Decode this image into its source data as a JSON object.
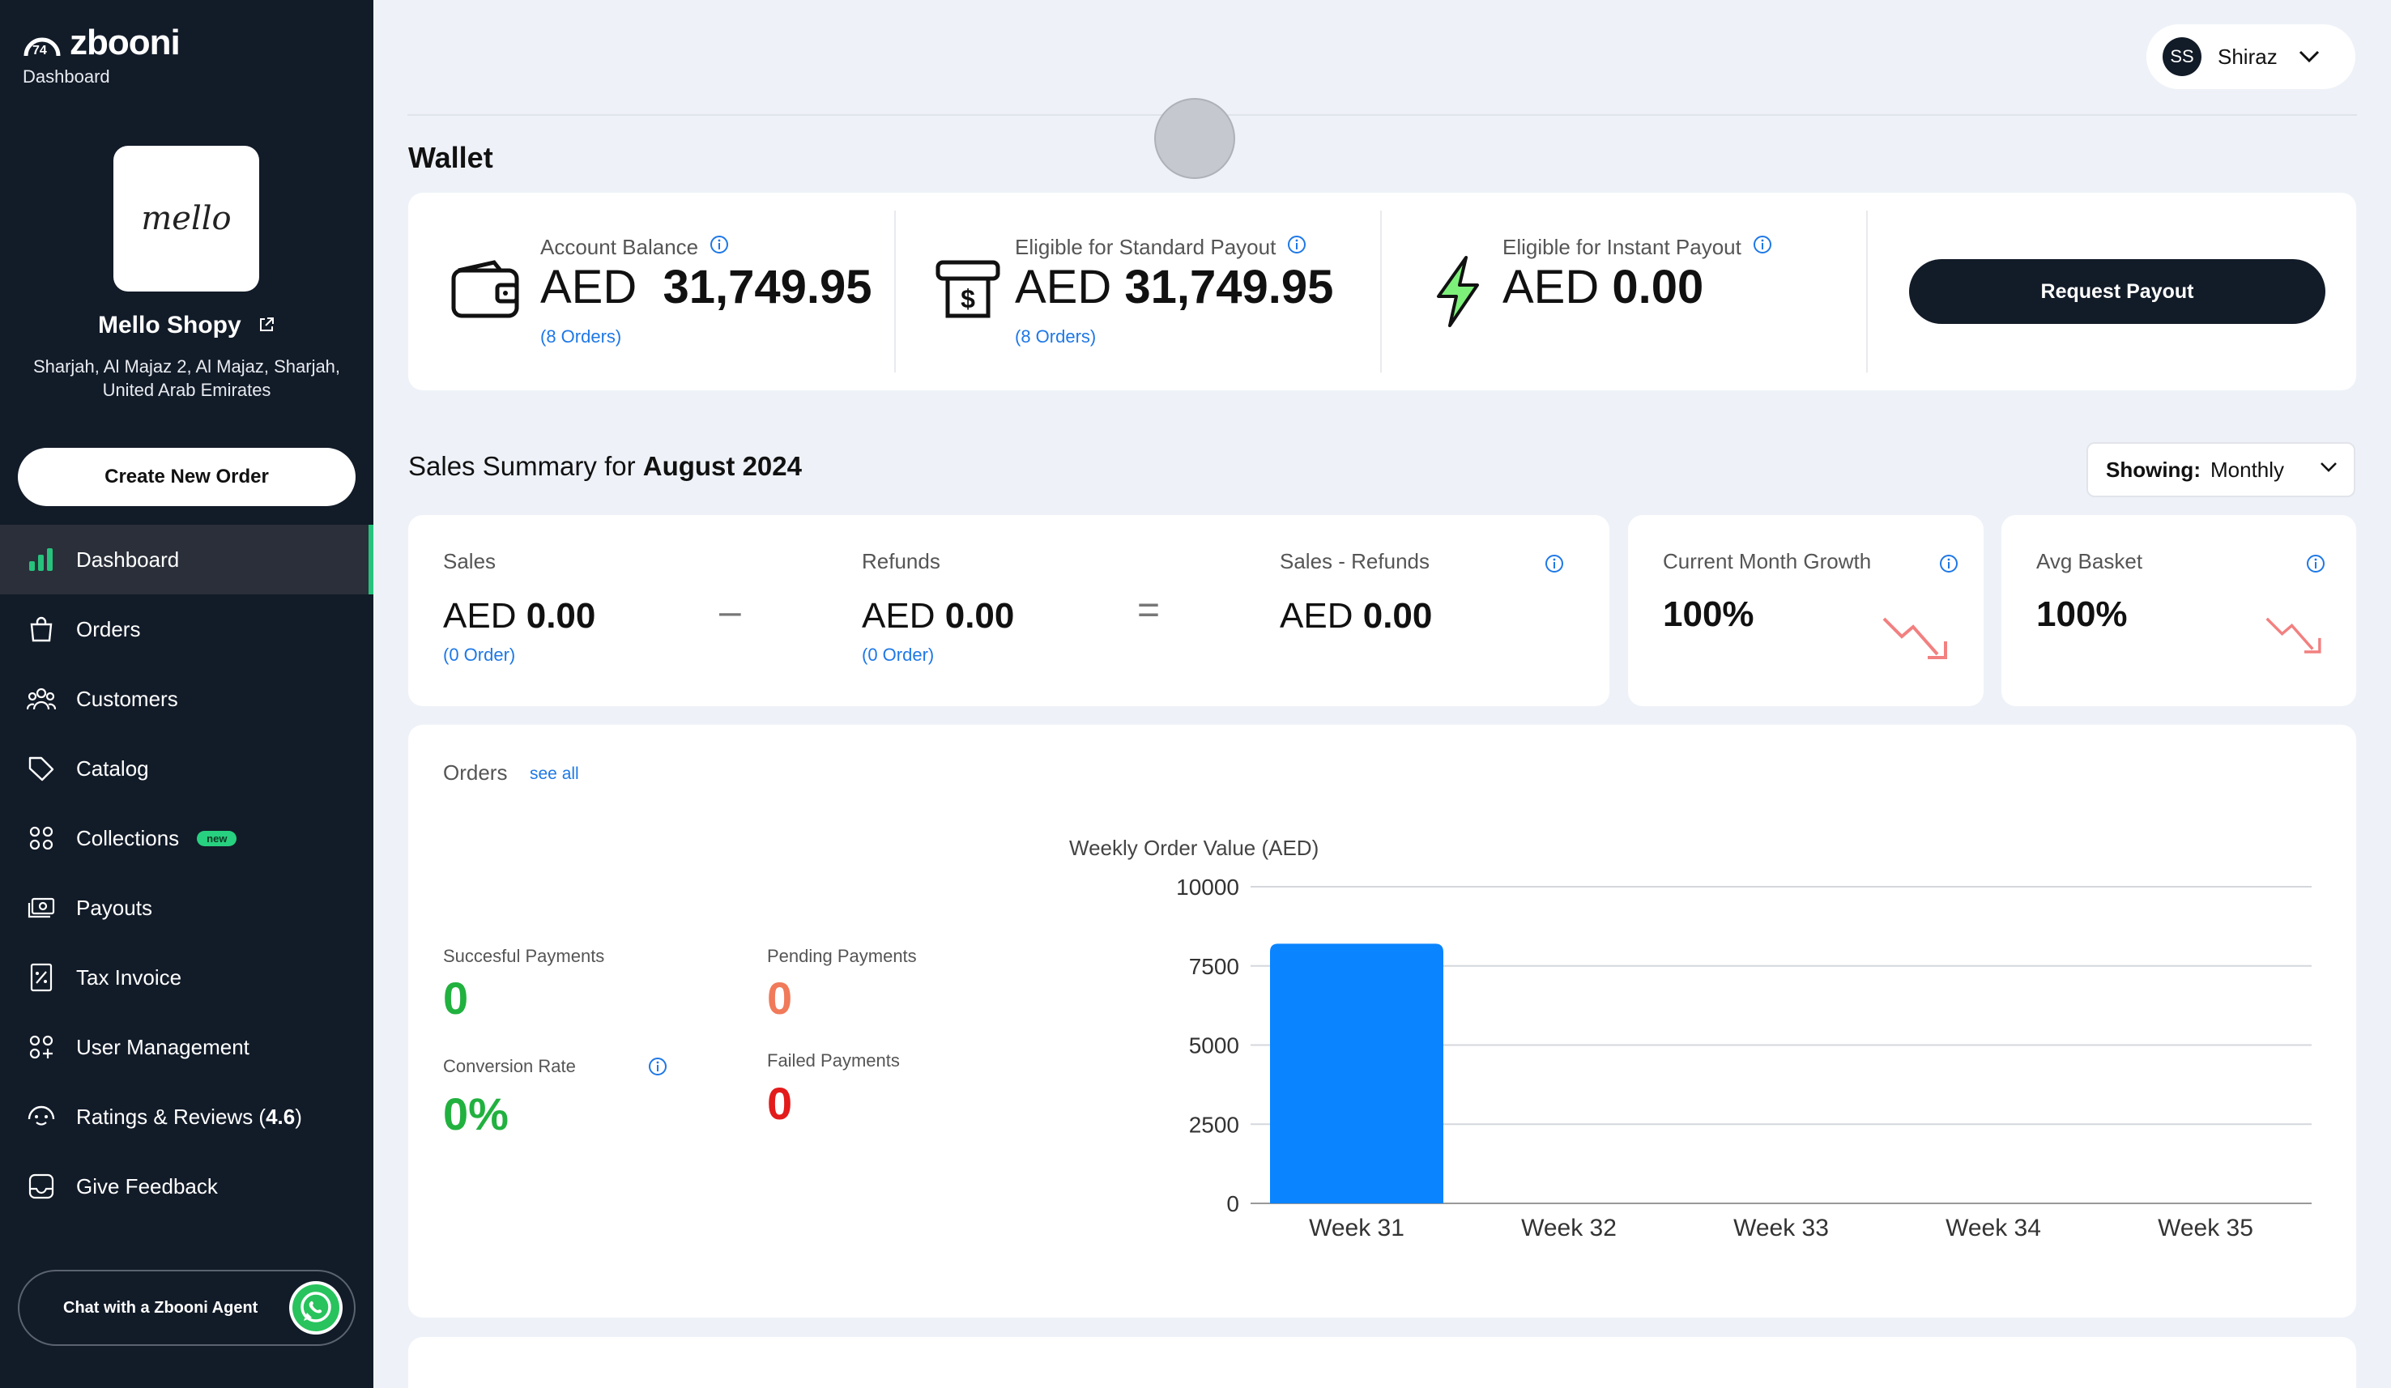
{
  "app": {
    "brand": "zbooni",
    "subtitle": "Dashboard"
  },
  "store": {
    "logo_text": "mello",
    "name": "Mello Shopy",
    "address": "Sharjah, Al Majaz 2, Al Majaz, Sharjah, United Arab Emirates"
  },
  "sidebar": {
    "create_label": "Create New Order",
    "items": [
      {
        "label": "Dashboard",
        "icon": "bar-chart-icon"
      },
      {
        "label": "Orders",
        "icon": "shopping-bag-icon"
      },
      {
        "label": "Customers",
        "icon": "users-icon"
      },
      {
        "label": "Catalog",
        "icon": "tag-icon"
      },
      {
        "label": "Collections",
        "icon": "grid-icon",
        "badge": "new"
      },
      {
        "label": "Payouts",
        "icon": "payout-icon"
      },
      {
        "label": "Tax Invoice",
        "icon": "invoice-icon"
      },
      {
        "label": "User Management",
        "icon": "user-management-icon"
      },
      {
        "label": "Ratings & Reviews (",
        "bold_value": "4.6",
        "suffix": ")",
        "icon": "rating-icon"
      },
      {
        "label": "Give Feedback",
        "icon": "feedback-icon"
      }
    ],
    "chat_label": "Chat with a Zbooni Agent"
  },
  "header": {
    "avatar_initials": "SS",
    "user_name": "Shiraz"
  },
  "wallet": {
    "title": "Wallet",
    "account_balance": {
      "label": "Account Balance",
      "currency": "AED",
      "amount": "31,749.95",
      "orders": "(8 Orders)"
    },
    "standard_payout": {
      "label": "Eligible for Standard Payout",
      "currency": "AED",
      "amount": "31,749.95",
      "orders": "(8 Orders)"
    },
    "instant_payout": {
      "label": "Eligible for Instant Payout",
      "currency": "AED",
      "amount": "0.00"
    },
    "request_label": "Request Payout"
  },
  "sales_summary": {
    "title_prefix": "Sales Summary for ",
    "period": "August 2024",
    "showing_label": "Showing:",
    "showing_value": "Monthly",
    "sales": {
      "label": "Sales",
      "currency": "AED",
      "amount": "0.00",
      "orders": "(0 Order)"
    },
    "refunds": {
      "label": "Refunds",
      "currency": "AED",
      "amount": "0.00",
      "orders": "(0 Order)"
    },
    "net": {
      "label": "Sales - Refunds",
      "currency": "AED",
      "amount": "0.00"
    },
    "minus_symbol": "–",
    "equals_symbol": "=",
    "growth": {
      "label": "Current Month Growth",
      "value": "100%"
    },
    "avg_basket": {
      "label": "Avg Basket",
      "value": "100%"
    }
  },
  "orders": {
    "title": "Orders",
    "see_all": "see all",
    "successful": {
      "label": "Succesful Payments",
      "value": "0"
    },
    "pending": {
      "label": "Pending Payments",
      "value": "0"
    },
    "conversion": {
      "label": "Conversion Rate",
      "value": "0%"
    },
    "failed": {
      "label": "Failed Payments",
      "value": "0"
    }
  },
  "colors": {
    "accent_green": "#27c27c",
    "success": "#21b13f",
    "pending": "#f07a5a",
    "failed": "#e31b1b",
    "link": "#1e78e6",
    "bar": "#0a84ff",
    "sidebar_bg": "#121b28"
  },
  "chart_data": {
    "type": "bar",
    "title": "Weekly Order Value (AED)",
    "categories": [
      "Week 31",
      "Week 32",
      "Week 33",
      "Week 34",
      "Week 35"
    ],
    "values": [
      8200,
      0,
      0,
      0,
      0
    ],
    "yticks": [
      0,
      2500,
      5000,
      7500,
      10000
    ],
    "ylim": [
      0,
      10000
    ],
    "grid": true
  }
}
